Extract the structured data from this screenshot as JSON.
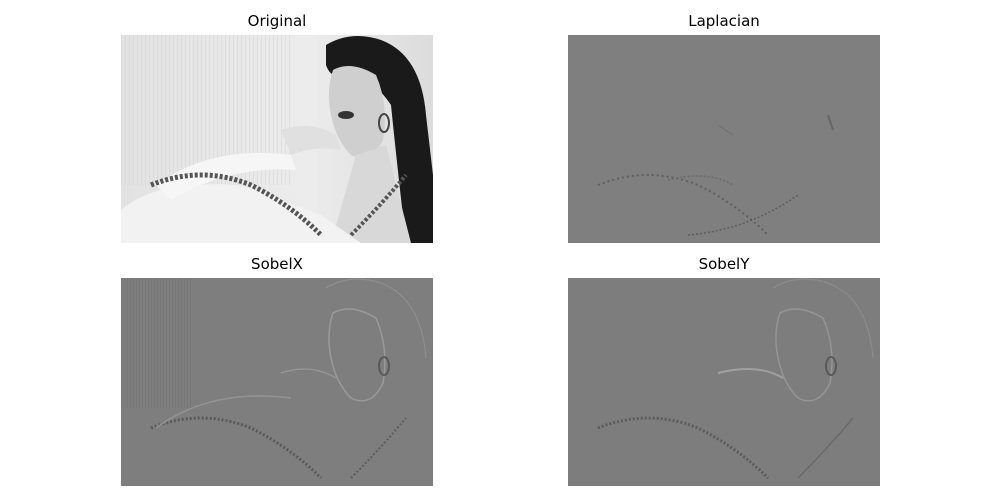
{
  "panels": [
    {
      "title": "Original"
    },
    {
      "title": "Laplacian"
    },
    {
      "title": "SobelX"
    },
    {
      "title": "SobelY"
    }
  ]
}
